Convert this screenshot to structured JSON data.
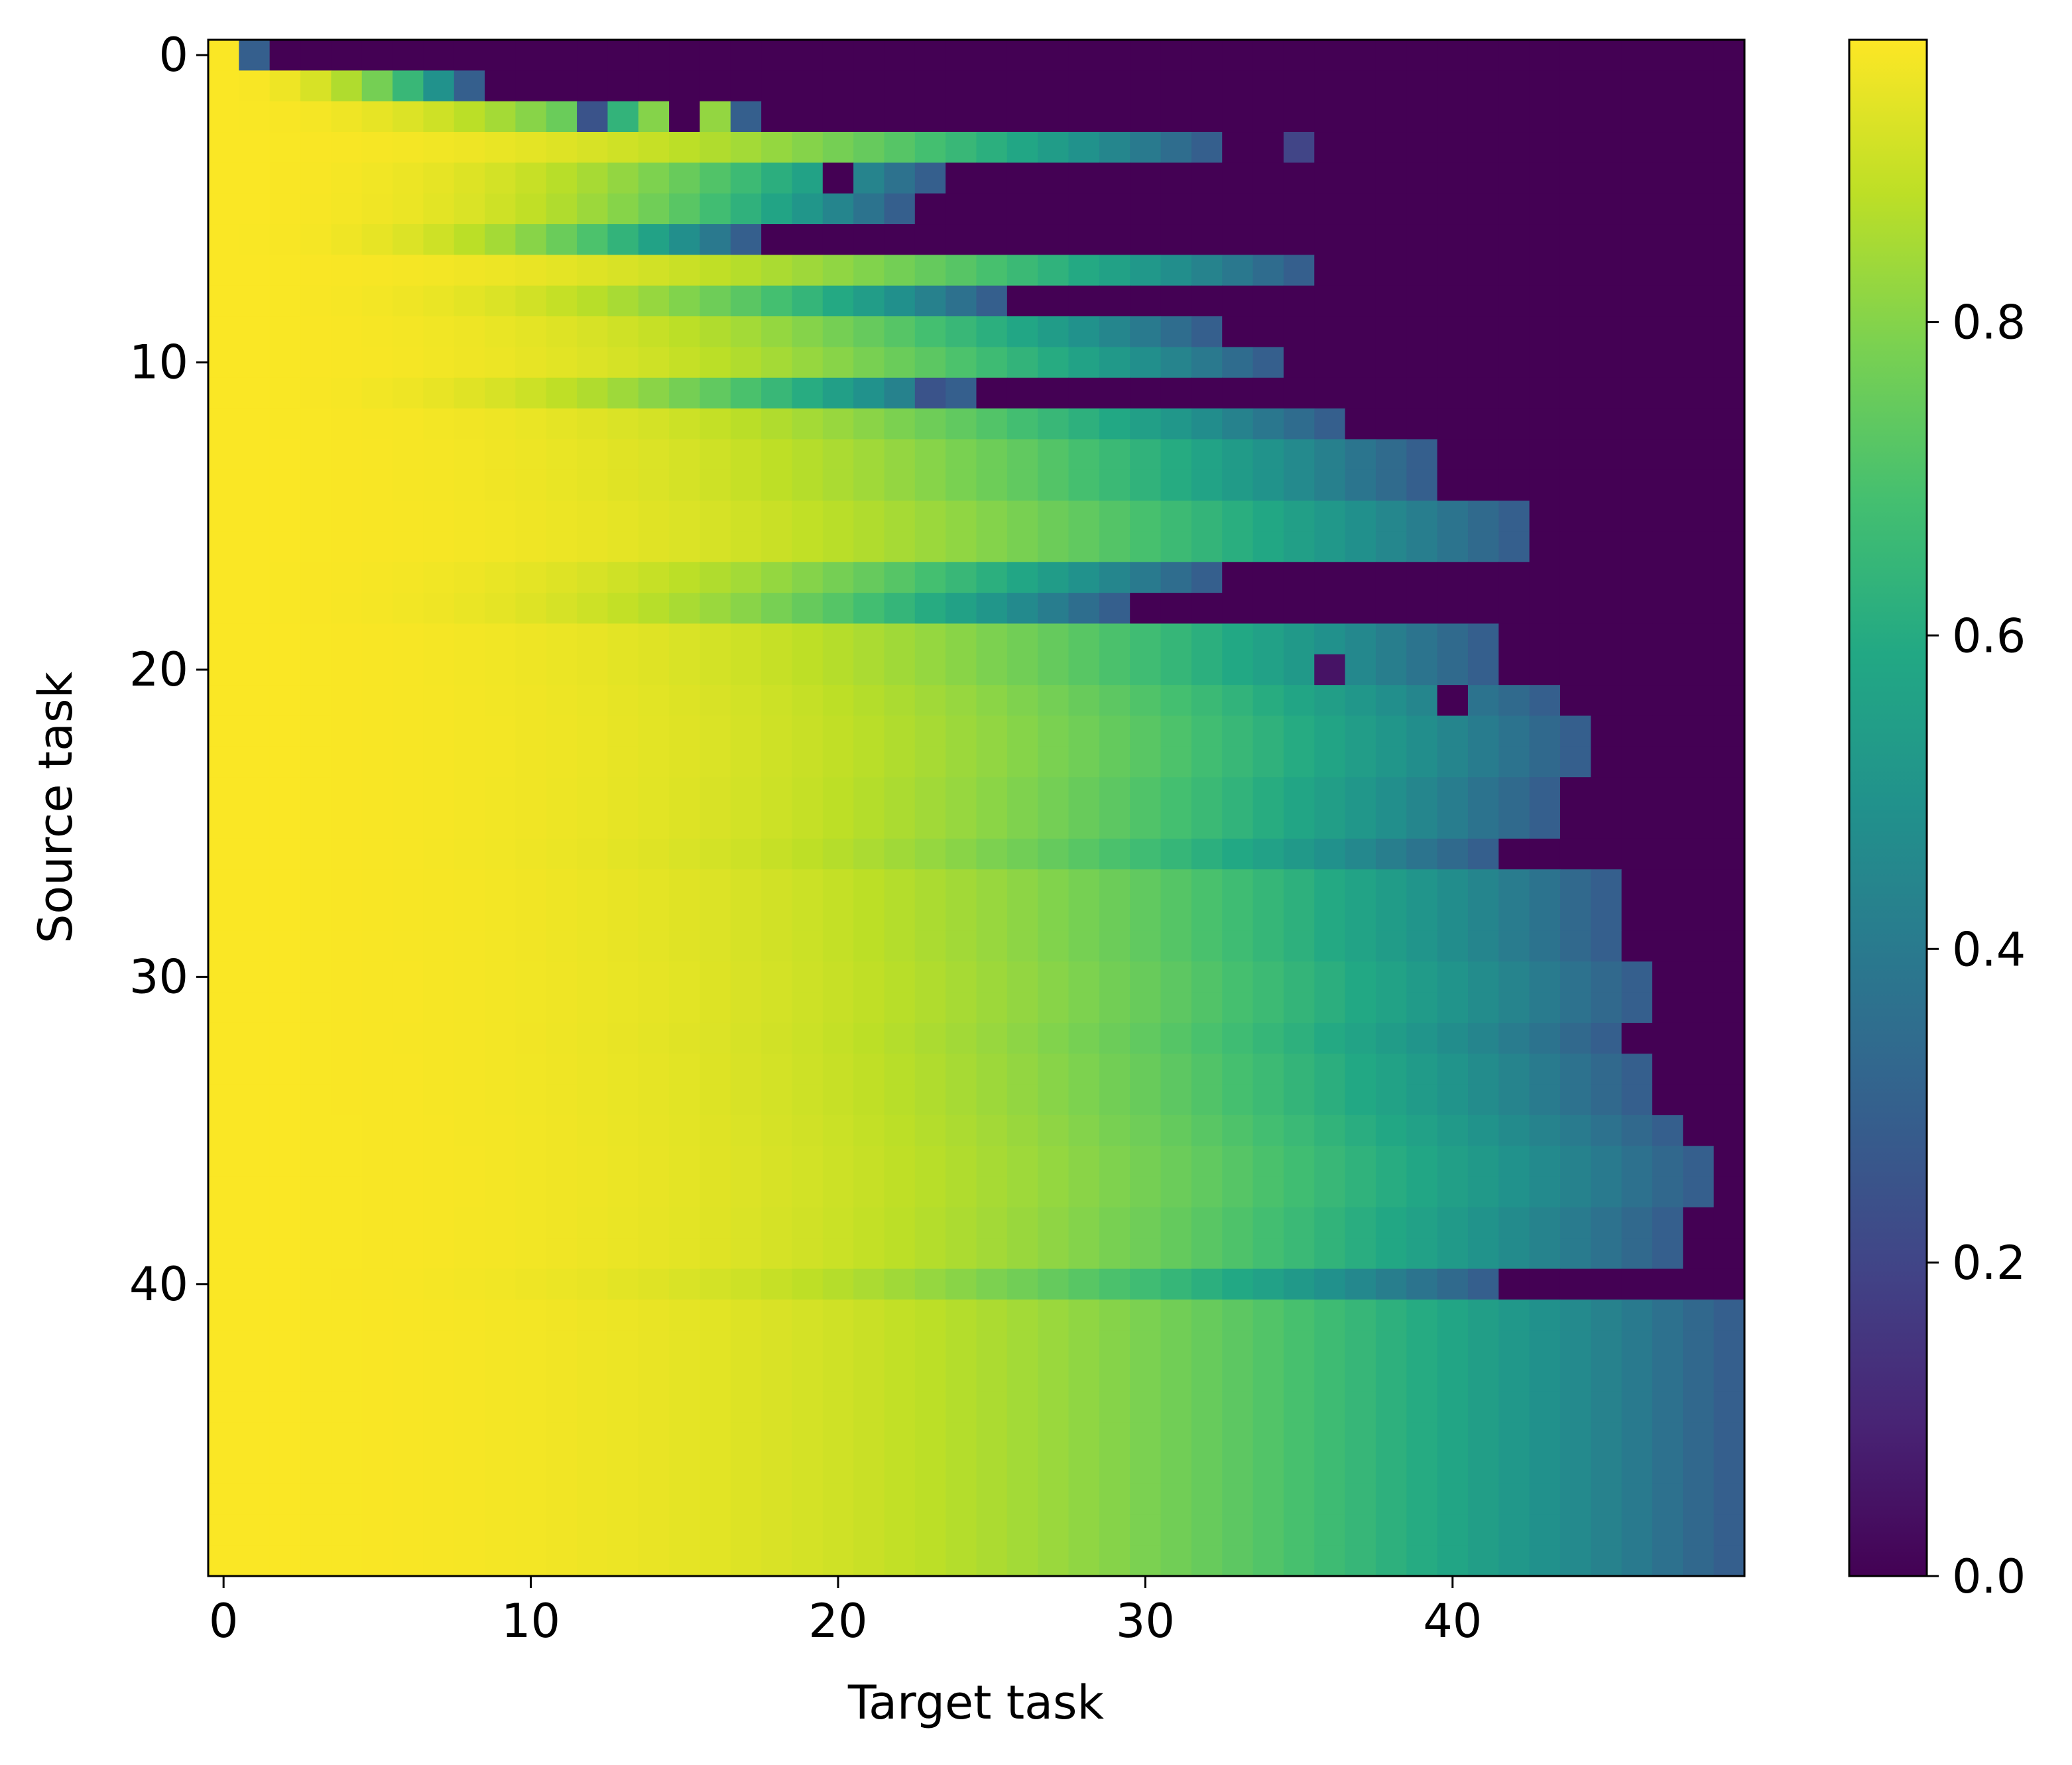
{
  "chart_data": {
    "type": "heatmap",
    "xlabel": "Target task",
    "ylabel": "Source task",
    "n_rows": 50,
    "n_cols": 50,
    "x_ticks": [
      0,
      10,
      20,
      30,
      40
    ],
    "y_ticks": [
      0,
      10,
      20,
      30,
      40
    ],
    "colorbar": {
      "colormap": "viridis",
      "vmin": 0.0,
      "vmax": 0.98,
      "ticks": [
        0.0,
        0.2,
        0.4,
        0.6,
        0.8
      ],
      "tick_labels": [
        "0.0",
        "0.2",
        "0.4",
        "0.6",
        "0.8"
      ]
    },
    "cutoff_per_row": [
      2,
      9,
      18,
      33,
      24,
      23,
      18,
      36,
      26,
      33,
      35,
      25,
      37,
      40,
      40,
      43,
      43,
      33,
      30,
      42,
      42,
      44,
      45,
      45,
      44,
      44,
      42,
      46,
      46,
      46,
      47,
      47,
      46,
      47,
      47,
      48,
      49,
      49,
      48,
      48,
      42,
      50,
      50,
      50,
      50,
      50,
      50,
      50,
      50,
      50
    ],
    "description": "cells at or beyond the cutoff are 0.0 (dark purple); values to the left fade from ~0.98 (yellow) downward as the target task approaches the cutoff",
    "anomaly_cells": [
      {
        "row": 2,
        "col": 12,
        "value": 0.25
      },
      {
        "row": 2,
        "col": 14,
        "value": 0.8
      },
      {
        "row": 2,
        "col": 15,
        "value": 0.0
      },
      {
        "row": 2,
        "col": 16,
        "value": 0.82
      },
      {
        "row": 3,
        "col": 35,
        "value": 0.2
      },
      {
        "row": 4,
        "col": 20,
        "value": 0.0
      },
      {
        "row": 11,
        "col": 23,
        "value": 0.25
      },
      {
        "row": 20,
        "col": 36,
        "value": 0.05
      },
      {
        "row": 21,
        "col": 40,
        "value": 0.0
      }
    ]
  }
}
